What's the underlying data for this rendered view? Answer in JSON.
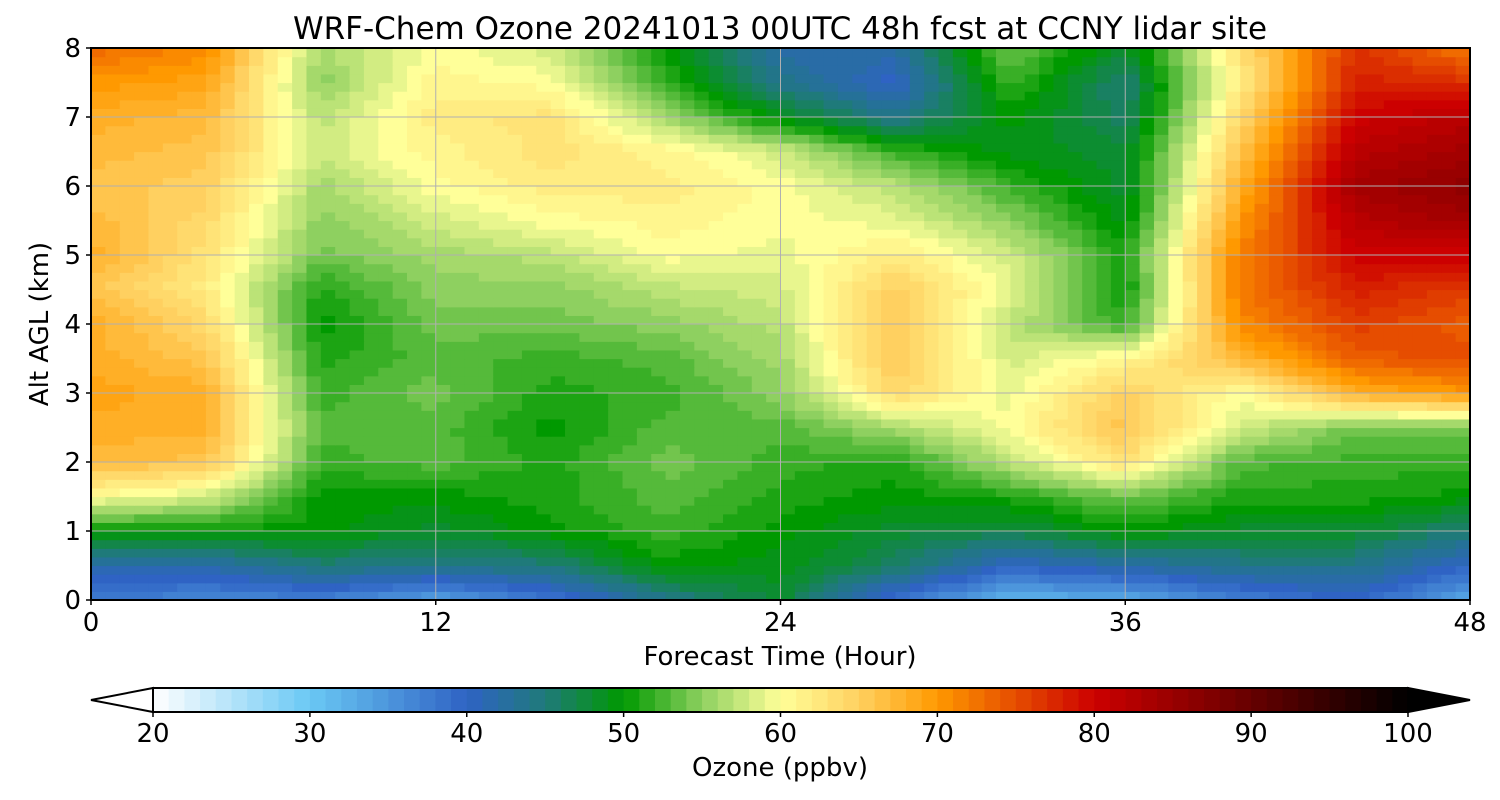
{
  "chart_data": {
    "type": "heatmap",
    "title": "WRF-Chem Ozone  20241013 00UTC 48h fcst at CCNY lidar site",
    "xlabel": "Forecast Time (Hour)",
    "ylabel": "Alt AGL (km)",
    "xlim": [
      0,
      48
    ],
    "ylim": [
      0,
      8
    ],
    "xticks": [
      "0",
      "12",
      "24",
      "36",
      "48"
    ],
    "yticks": [
      "0",
      "1",
      "2",
      "3",
      "4",
      "5",
      "6",
      "7",
      "8"
    ],
    "grid": true,
    "z_label": "Ozone  (ppbv)",
    "colorbar": {
      "label": "Ozone  (ppbv)",
      "range": [
        20,
        100
      ],
      "extend": "both",
      "ticks": [
        "20",
        "30",
        "40",
        "50",
        "60",
        "70",
        "80",
        "90",
        "100"
      ],
      "stops": [
        {
          "value": 20,
          "color": "#ffffff"
        },
        {
          "value": 30,
          "color": "#6ac8f4"
        },
        {
          "value": 40,
          "color": "#2f63c4"
        },
        {
          "value": 45,
          "color": "#1f7a7a"
        },
        {
          "value": 50,
          "color": "#009900"
        },
        {
          "value": 55,
          "color": "#8ed060"
        },
        {
          "value": 60,
          "color": "#ffff99"
        },
        {
          "value": 65,
          "color": "#ffd060"
        },
        {
          "value": 70,
          "color": "#ff9900"
        },
        {
          "value": 80,
          "color": "#cc0000"
        },
        {
          "value": 90,
          "color": "#660000"
        },
        {
          "value": 100,
          "color": "#000000"
        }
      ]
    },
    "x": [
      0,
      4,
      8,
      12,
      16,
      20,
      24,
      28,
      32,
      36,
      40,
      44,
      48
    ],
    "y": [
      0,
      0.5,
      1,
      1.5,
      2,
      2.5,
      3,
      3.5,
      4,
      4.5,
      5,
      5.5,
      6,
      6.5,
      7,
      7.5,
      8
    ],
    "z": [
      [
        38,
        36,
        37,
        34,
        38,
        44,
        48,
        38,
        32,
        33,
        37,
        40,
        33
      ],
      [
        42,
        42,
        45,
        44,
        45,
        50,
        49,
        46,
        40,
        42,
        44,
        44,
        40
      ],
      [
        50,
        50,
        50,
        48,
        50,
        52,
        50,
        48,
        47,
        50,
        48,
        48,
        45
      ],
      [
        60,
        58,
        50,
        50,
        51,
        53,
        51,
        50,
        51,
        54,
        51,
        51,
        50
      ],
      [
        67,
        66,
        52,
        53,
        51,
        54,
        52,
        51,
        57,
        63,
        53,
        52,
        52
      ],
      [
        68,
        68,
        53,
        53,
        50,
        53,
        53,
        56,
        60,
        66,
        58,
        54,
        54
      ],
      [
        69,
        68,
        52,
        54,
        51,
        52,
        55,
        64,
        59,
        65,
        60,
        68,
        70
      ],
      [
        68,
        66,
        51,
        53,
        52,
        53,
        56,
        66,
        58,
        61,
        67,
        74,
        75
      ],
      [
        68,
        64,
        50,
        54,
        54,
        55,
        57,
        66,
        57,
        52,
        71,
        76,
        74
      ],
      [
        66,
        62,
        51,
        55,
        55,
        57,
        58,
        65,
        59,
        50,
        72,
        78,
        76
      ],
      [
        68,
        63,
        54,
        56,
        57,
        60,
        59,
        62,
        58,
        51,
        72,
        80,
        80
      ],
      [
        67,
        64,
        55,
        58,
        60,
        61,
        60,
        59,
        55,
        49,
        70,
        82,
        84
      ],
      [
        66,
        65,
        56,
        60,
        62,
        62,
        60,
        57,
        52,
        48,
        68,
        84,
        86
      ],
      [
        67,
        66,
        58,
        61,
        63,
        61,
        58,
        52,
        49,
        48,
        66,
        82,
        84
      ],
      [
        68,
        67,
        57,
        62,
        63,
        56,
        49,
        44,
        50,
        46,
        64,
        80,
        82
      ],
      [
        70,
        69,
        55,
        61,
        60,
        52,
        44,
        40,
        52,
        45,
        62,
        78,
        77
      ],
      [
        73,
        71,
        56,
        60,
        58,
        50,
        42,
        42,
        54,
        48,
        63,
        77,
        72
      ]
    ]
  }
}
